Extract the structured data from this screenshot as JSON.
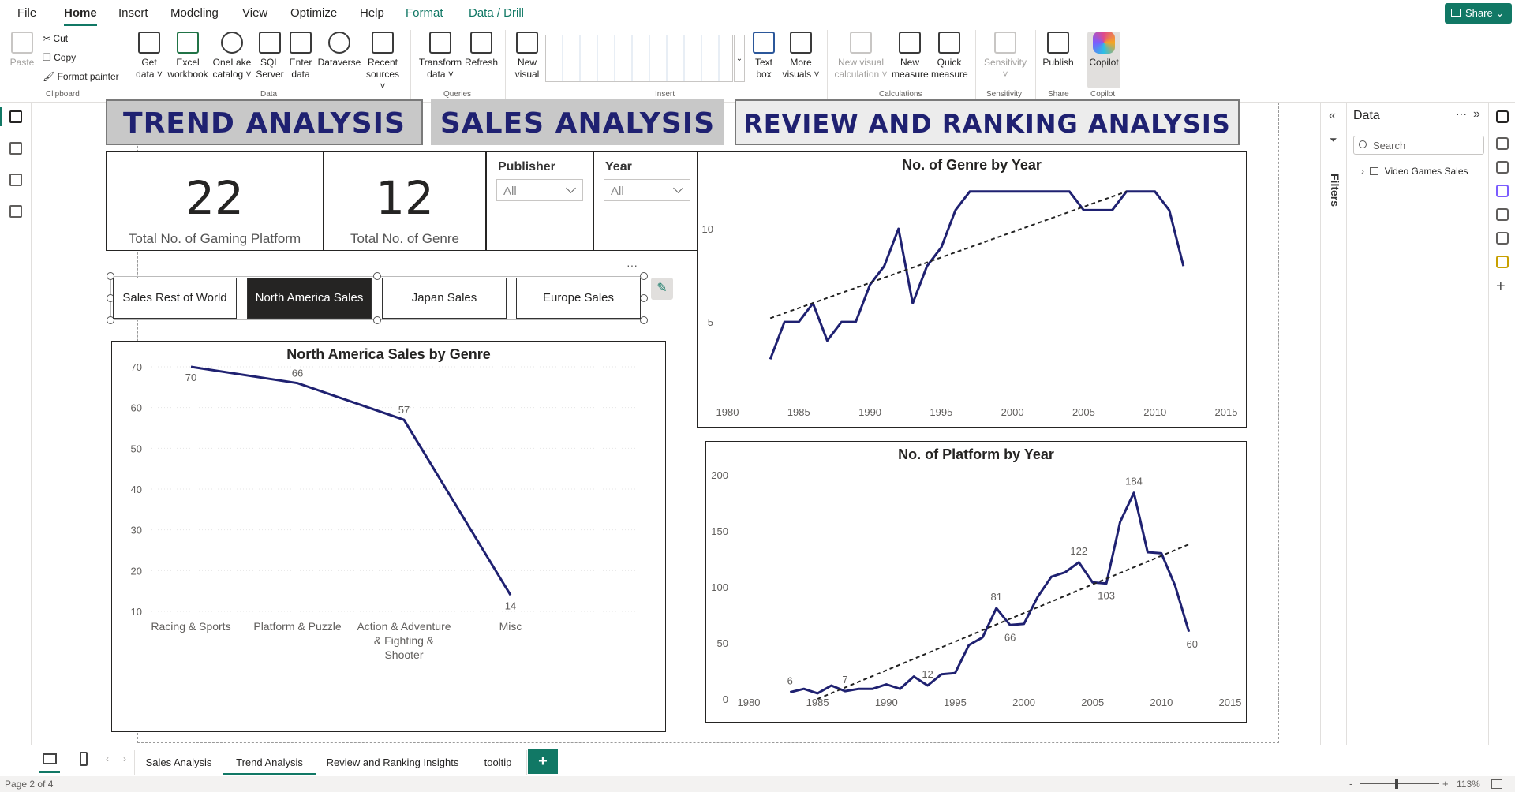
{
  "menu": {
    "tabs": [
      "File",
      "Home",
      "Insert",
      "Modeling",
      "View",
      "Optimize",
      "Help"
    ],
    "context_tabs": [
      "Format",
      "Data / Drill"
    ],
    "active": "Home",
    "share": "Share"
  },
  "ribbon": {
    "clipboard": {
      "paste": "Paste",
      "cut": "Cut",
      "copy": "Copy",
      "format_painter": "Format painter",
      "label": "Clipboard"
    },
    "data": {
      "items": [
        {
          "line1": "Get",
          "line2": "data ˅"
        },
        {
          "line1": "Excel",
          "line2": "workbook"
        },
        {
          "line1": "OneLake",
          "line2": "catalog ˅"
        },
        {
          "line1": "SQL",
          "line2": "Server"
        },
        {
          "line1": "Enter",
          "line2": "data"
        },
        {
          "line1": "Dataverse",
          "line2": ""
        },
        {
          "line1": "Recent",
          "line2": "sources ˅"
        }
      ],
      "label": "Data"
    },
    "queries": {
      "transform_1": "Transform",
      "transform_2": "data ˅",
      "refresh": "Refresh",
      "label": "Queries"
    },
    "insert": {
      "new_visual_1": "New",
      "new_visual_2": "visual",
      "text_box_1": "Text",
      "text_box_2": "box",
      "more_visuals_1": "More",
      "more_visuals_2": "visuals ˅",
      "label": "Insert"
    },
    "calculations": {
      "new_visual_calc_1": "New visual",
      "new_visual_calc_2": "calculation ˅",
      "new_measure_1": "New",
      "new_measure_2": "measure",
      "quick_measure_1": "Quick",
      "quick_measure_2": "measure",
      "label": "Calculations"
    },
    "sensitivity": {
      "btn_1": "Sensitivity",
      "btn_2": "˅",
      "label": "Sensitivity"
    },
    "share": {
      "publish": "Publish",
      "label": "Share"
    },
    "copilot": {
      "btn": "Copilot",
      "label": "Copilot"
    }
  },
  "report": {
    "nav": {
      "trend": "TREND ANALYSIS",
      "sales": "SALES ANALYSIS",
      "review": "REVIEW AND RANKING ANALYSIS"
    },
    "kpi_platform": {
      "value": "22",
      "label": "Total No. of Gaming Platform"
    },
    "kpi_genre": {
      "value": "12",
      "label": "Total No. of Genre"
    },
    "slicer_publisher": {
      "title": "Publisher",
      "value": "All"
    },
    "slicer_year": {
      "title": "Year",
      "value": "All"
    },
    "segments": [
      "Sales Rest of World",
      "North America Sales",
      "Japan Sales",
      "Europe Sales"
    ],
    "more_options": "···"
  },
  "colors": {
    "accent": "#117865",
    "line": "#1f2171",
    "nav_text": "#1f2171"
  },
  "chart_data": [
    {
      "type": "line",
      "title": "North America Sales by Genre",
      "categories": [
        "Racing & Sports",
        "Platform & Puzzle",
        "Action & Adventure & Fighting & Shooter",
        "Misc"
      ],
      "category_lines": [
        [
          "Racing & Sports"
        ],
        [
          "Platform & Puzzle"
        ],
        [
          "Action & Adventure",
          "& Fighting &",
          "Shooter"
        ],
        [
          "Misc"
        ]
      ],
      "values": [
        70,
        66,
        57,
        14
      ],
      "yticks": [
        10,
        20,
        30,
        40,
        50,
        60,
        70
      ],
      "ylim": [
        10,
        70
      ],
      "grid": true
    },
    {
      "type": "line",
      "title": "No. of Genre by Year",
      "x": [
        1983,
        1984,
        1985,
        1986,
        1987,
        1988,
        1989,
        1990,
        1991,
        1992,
        1993,
        1994,
        1995,
        1996,
        1997,
        1998,
        1999,
        2000,
        2001,
        2002,
        2003,
        2004,
        2005,
        2006,
        2007,
        2008,
        2009,
        2010,
        2011,
        2012
      ],
      "values": [
        3,
        5,
        5,
        6,
        4,
        5,
        5,
        7,
        8,
        10,
        6,
        8,
        9,
        11,
        12,
        12,
        12,
        12,
        12,
        12,
        12,
        12,
        11,
        11,
        11,
        12,
        12,
        12,
        11,
        8
      ],
      "trend": [
        [
          1983,
          5.2
        ],
        [
          2008,
          12
        ]
      ],
      "xticks": [
        1980,
        1985,
        1990,
        1995,
        2000,
        2005,
        2010,
        2015
      ],
      "yticks": [
        5,
        10
      ],
      "xlim": [
        1980,
        2015
      ],
      "ylim": [
        2,
        12.5
      ]
    },
    {
      "type": "line",
      "title": "No. of Platform by Year",
      "x": [
        1983,
        1984,
        1985,
        1986,
        1987,
        1988,
        1989,
        1990,
        1991,
        1992,
        1993,
        1994,
        1995,
        1996,
        1997,
        1998,
        1999,
        2000,
        2001,
        2002,
        2003,
        2004,
        2005,
        2006,
        2007,
        2008,
        2009,
        2010,
        2011,
        2012
      ],
      "values": [
        6,
        9,
        5,
        12,
        7,
        9,
        9,
        13,
        9,
        20,
        12,
        22,
        23,
        48,
        55,
        81,
        66,
        67,
        91,
        109,
        113,
        122,
        104,
        103,
        158,
        184,
        131,
        130,
        101,
        60
      ],
      "labels": [
        {
          "x": 1983,
          "text": "6"
        },
        {
          "x": 1987,
          "text": "7"
        },
        {
          "x": 1993,
          "text": "12"
        },
        {
          "x": 1998,
          "text": "81"
        },
        {
          "x": 1999,
          "text": "66"
        },
        {
          "x": 2004,
          "text": "122"
        },
        {
          "x": 2006,
          "text": "103"
        },
        {
          "x": 2008,
          "text": "184"
        },
        {
          "x": 2012,
          "text": "60"
        }
      ],
      "trend": [
        [
          1985,
          0
        ],
        [
          2012,
          138
        ]
      ],
      "xticks": [
        1980,
        1985,
        1990,
        1995,
        2000,
        2005,
        2010,
        2015
      ],
      "yticks": [
        0,
        50,
        100,
        150,
        200
      ],
      "xlim": [
        1980,
        2015
      ],
      "ylim": [
        0,
        200
      ]
    }
  ],
  "filters_label": "Filters",
  "data_pane": {
    "title": "Data",
    "search_placeholder": "Search",
    "table": "Video Games Sales"
  },
  "page_tabs": [
    "Sales Analysis",
    "Trend Analysis",
    "Review and Ranking Insights",
    "tooltip"
  ],
  "active_page_tab": "Trend Analysis",
  "add_page": "+",
  "status": {
    "page": "Page 2 of 4",
    "zoom": "113%",
    "minus": "-",
    "plus": "+"
  }
}
